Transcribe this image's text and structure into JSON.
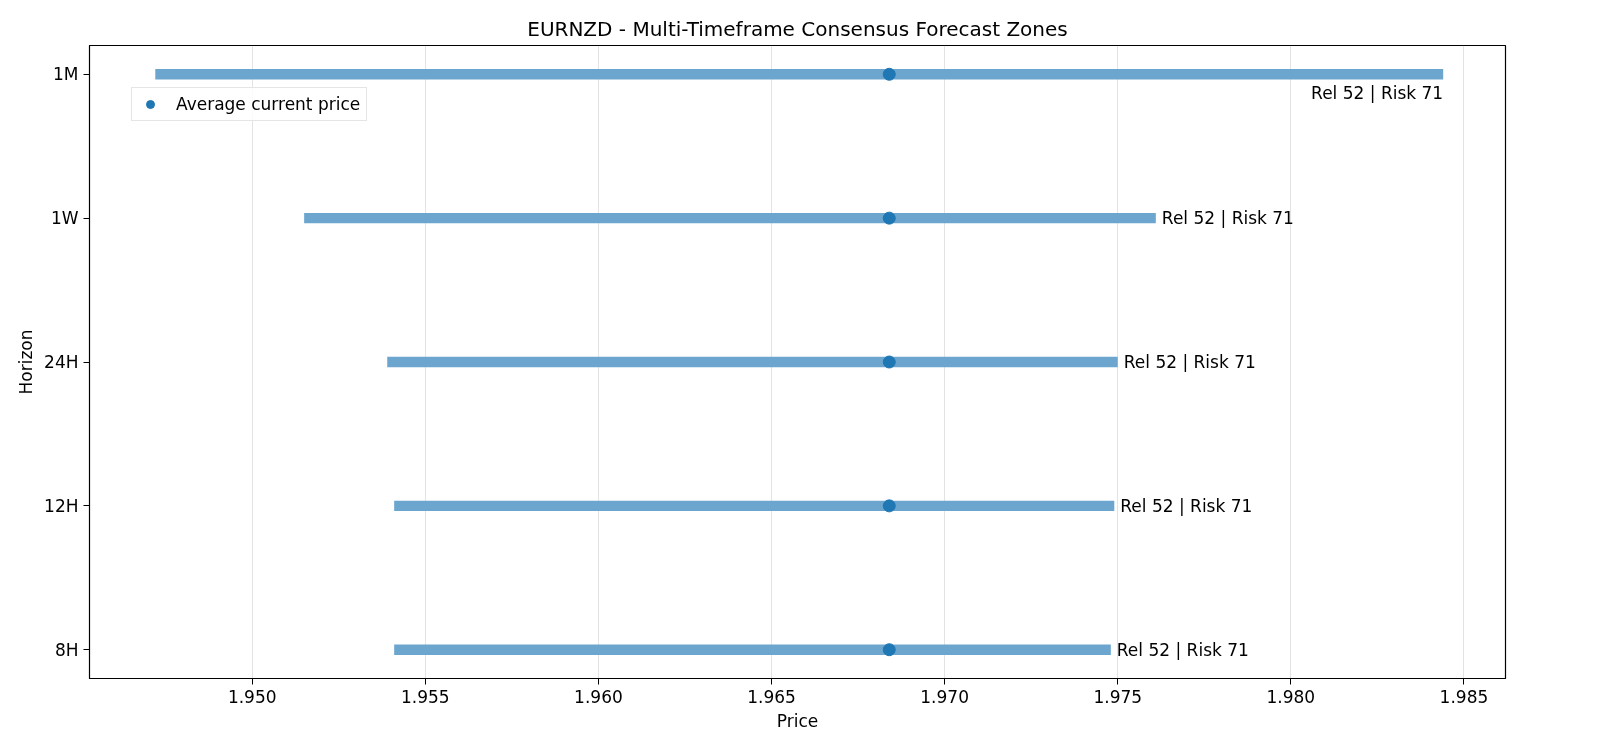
{
  "chart_data": {
    "type": "bar",
    "orientation": "horizontal",
    "title": "EURNZD - Multi-Timeframe Consensus Forecast Zones",
    "xlabel": "Price",
    "ylabel": "Horizon",
    "categories": [
      "1M",
      "1W",
      "24H",
      "12H",
      "8H"
    ],
    "series": [
      {
        "type": "bar",
        "color": "#6ca6cf",
        "base": [
          1.9472,
          1.9515,
          1.9539,
          1.9541,
          1.9541
        ],
        "values": [
          0.0372,
          0.0246,
          0.0211,
          0.0208,
          0.0207
        ],
        "value_labels": [
          "Rel 52 | Risk 71",
          "Rel 52 | Risk 71",
          "Rel 52 | Risk 71",
          "Rel 52 | Risk 71",
          "Rel 52 | Risk 71"
        ]
      },
      {
        "type": "scatter",
        "name": "Average current price",
        "color": "#1f77b4",
        "marker": "circle",
        "values": [
          1.9684,
          1.9684,
          1.9684,
          1.9684,
          1.9684
        ]
      }
    ],
    "xlim": [
      1.9453,
      1.9862
    ],
    "xticks": [
      {
        "value": 1.95,
        "label": "1.950"
      },
      {
        "value": 1.955,
        "label": "1.955"
      },
      {
        "value": 1.96,
        "label": "1.960"
      },
      {
        "value": 1.965,
        "label": "1.965"
      },
      {
        "value": 1.97,
        "label": "1.970"
      },
      {
        "value": 1.975,
        "label": "1.975"
      },
      {
        "value": 1.98,
        "label": "1.980"
      },
      {
        "value": 1.985,
        "label": "1.985"
      }
    ],
    "grid": "x",
    "legend": "top left"
  }
}
